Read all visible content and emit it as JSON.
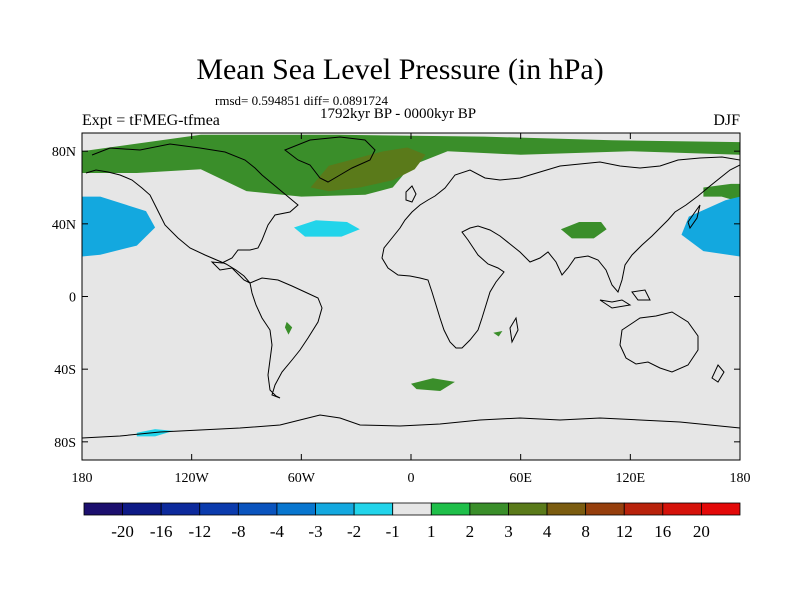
{
  "title": "Mean Sea Level Pressure (in hPa)",
  "stats": "rmsd= 0.594851 diff= 0.0891724",
  "period": "1792kyr BP - 0000kyr BP",
  "experiment": "Expt = tFMEG-tfmea",
  "season": "DJF",
  "chart_data": {
    "type": "heatmap",
    "map": "global lat-lon difference field",
    "x_ticks": [
      {
        "value": -180,
        "label": "180"
      },
      {
        "value": -120,
        "label": "120W"
      },
      {
        "value": -60,
        "label": "60W"
      },
      {
        "value": 0,
        "label": "0"
      },
      {
        "value": 60,
        "label": "60E"
      },
      {
        "value": 120,
        "label": "120E"
      },
      {
        "value": 180,
        "label": "180"
      }
    ],
    "y_ticks": [
      {
        "value": 80,
        "label": "80N"
      },
      {
        "value": 40,
        "label": "40N"
      },
      {
        "value": 0,
        "label": "0"
      },
      {
        "value": -40,
        "label": "40S"
      },
      {
        "value": -80,
        "label": "80S"
      }
    ],
    "xlim": [
      -180,
      180
    ],
    "ylim": [
      -90,
      90
    ],
    "colorbar": {
      "levels": [
        "-20",
        "-16",
        "-12",
        "-8",
        "-4",
        "-3",
        "-2",
        "-1",
        "1",
        "2",
        "3",
        "4",
        "8",
        "12",
        "16",
        "20"
      ],
      "colors": [
        "#1c0f6e",
        "#0e1a86",
        "#0d2a9c",
        "#0b3bad",
        "#0a54be",
        "#0876cf",
        "#13a8df",
        "#22d4ea",
        "#e6e6e6",
        "#1fbf4a",
        "#3a8e2a",
        "#5a7a1a",
        "#7b5c10",
        "#963f0d",
        "#b8220b",
        "#d5120a",
        "#e30909"
      ]
    },
    "regions": [
      {
        "level": "2",
        "desc": "Arctic / North Atlantic / northern Eurasia band",
        "points": [
          [
            -115,
            89
          ],
          [
            -40,
            89
          ],
          [
            40,
            88
          ],
          [
            110,
            86
          ],
          [
            180,
            85
          ],
          [
            180,
            78
          ],
          [
            120,
            80
          ],
          [
            60,
            78
          ],
          [
            20,
            80
          ],
          [
            0,
            72
          ],
          [
            -10,
            60
          ],
          [
            -25,
            56
          ],
          [
            -60,
            55
          ],
          [
            -90,
            58
          ],
          [
            -115,
            70
          ],
          [
            -150,
            68
          ],
          [
            -180,
            68
          ],
          [
            -180,
            80
          ]
        ]
      },
      {
        "level": "3",
        "desc": "Greenland - Scandinavia positive centre",
        "points": [
          [
            -55,
            60
          ],
          [
            -45,
            72
          ],
          [
            -15,
            80
          ],
          [
            -2,
            82
          ],
          [
            8,
            78
          ],
          [
            2,
            70
          ],
          [
            -10,
            64
          ],
          [
            -28,
            60
          ],
          [
            -45,
            58
          ]
        ]
      },
      {
        "level": "2",
        "desc": "Central Asia patch",
        "points": [
          [
            82,
            37
          ],
          [
            92,
            41
          ],
          [
            104,
            41
          ],
          [
            107,
            37
          ],
          [
            100,
            32
          ],
          [
            88,
            32
          ]
        ]
      },
      {
        "level": "2",
        "desc": "Northwest Pacific / Siberia edge",
        "points": [
          [
            160,
            60
          ],
          [
            175,
            62
          ],
          [
            180,
            62
          ],
          [
            180,
            52
          ],
          [
            170,
            55
          ],
          [
            160,
            55
          ]
        ]
      },
      {
        "level": "-3",
        "desc": "North Pacific negative (west)",
        "points": [
          [
            -180,
            55
          ],
          [
            -170,
            55
          ],
          [
            -145,
            47
          ],
          [
            -140,
            38
          ],
          [
            -150,
            28
          ],
          [
            -170,
            23
          ],
          [
            -180,
            22
          ]
        ]
      },
      {
        "level": "-3",
        "desc": "North Pacific negative (east)",
        "points": [
          [
            180,
            55
          ],
          [
            172,
            53
          ],
          [
            152,
            44
          ],
          [
            148,
            34
          ],
          [
            160,
            25
          ],
          [
            180,
            22
          ]
        ]
      },
      {
        "level": "-2",
        "desc": "North Atlantic negative",
        "points": [
          [
            -64,
            38
          ],
          [
            -52,
            42
          ],
          [
            -35,
            41
          ],
          [
            -28,
            37
          ],
          [
            -38,
            33
          ],
          [
            -58,
            33
          ]
        ]
      },
      {
        "level": "2",
        "desc": "South Atlantic / Indian patch",
        "points": [
          [
            0,
            -48
          ],
          [
            12,
            -45
          ],
          [
            24,
            -47
          ],
          [
            16,
            -52
          ],
          [
            3,
            -51
          ]
        ]
      },
      {
        "level": "2",
        "desc": "Andes small patch",
        "points": [
          [
            -68,
            -14
          ],
          [
            -65,
            -17
          ],
          [
            -67,
            -21
          ],
          [
            -69,
            -17
          ]
        ]
      },
      {
        "level": "2",
        "desc": "Indian Ocean small patch",
        "points": [
          [
            45,
            -20
          ],
          [
            50,
            -19
          ],
          [
            48,
            -22
          ]
        ]
      },
      {
        "level": "-2",
        "desc": "Southern Ocean small patch",
        "points": [
          [
            -150,
            -75
          ],
          [
            -140,
            -73
          ],
          [
            -130,
            -74
          ],
          [
            -140,
            -77
          ],
          [
            -150,
            -77
          ]
        ]
      }
    ]
  }
}
